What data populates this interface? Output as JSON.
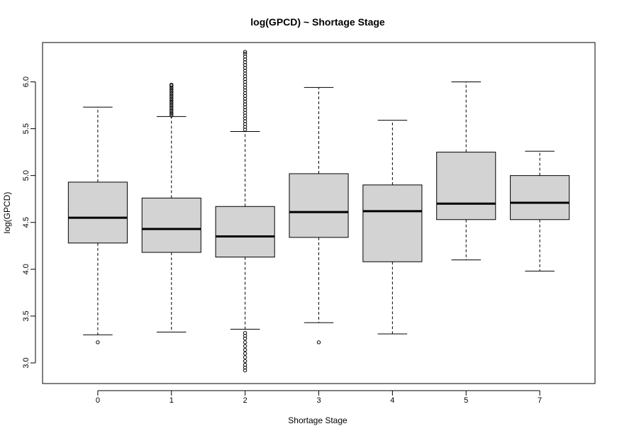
{
  "chart_data": {
    "type": "boxplot",
    "title": "log(GPCD) ~ Shortage Stage",
    "xlabel": "Shortage Stage",
    "ylabel": "log(GPCD)",
    "ylim": [
      2.78,
      6.42
    ],
    "yticks": [
      "3.0",
      "3.5",
      "4.0",
      "4.5",
      "5.0",
      "5.5",
      "6.0"
    ],
    "categories": [
      "0",
      "1",
      "2",
      "3",
      "4",
      "5",
      "7"
    ],
    "colors": {
      "box_fill": "#d3d3d3",
      "stroke": "#000000"
    },
    "boxes": [
      {
        "label": "0",
        "whisker_low": 3.3,
        "q1": 4.28,
        "median": 4.55,
        "q3": 4.93,
        "whisker_high": 5.73,
        "outliers": [
          3.22
        ]
      },
      {
        "label": "1",
        "whisker_low": 3.33,
        "q1": 4.18,
        "median": 4.43,
        "q3": 4.76,
        "whisker_high": 5.63,
        "outliers": [
          5.64,
          5.66,
          5.68,
          5.7,
          5.72,
          5.74,
          5.76,
          5.78,
          5.8,
          5.82,
          5.84,
          5.86,
          5.88,
          5.9,
          5.92,
          5.94,
          5.96,
          5.97
        ]
      },
      {
        "label": "2",
        "whisker_low": 3.36,
        "q1": 4.13,
        "median": 4.35,
        "q3": 4.67,
        "whisker_high": 5.47,
        "outliers": [
          5.49,
          5.52,
          5.55,
          5.58,
          5.61,
          5.64,
          5.67,
          5.7,
          5.73,
          5.76,
          5.79,
          5.82,
          5.85,
          5.88,
          5.91,
          5.94,
          5.97,
          6.0,
          6.03,
          6.06,
          6.09,
          6.12,
          6.15,
          6.18,
          6.21,
          6.24,
          6.27,
          6.3,
          6.32,
          3.32,
          3.29,
          3.26,
          3.22,
          3.18,
          3.14,
          3.1,
          3.06,
          3.02,
          2.98,
          2.95,
          2.92
        ]
      },
      {
        "label": "3",
        "whisker_low": 3.43,
        "q1": 4.34,
        "median": 4.61,
        "q3": 5.02,
        "whisker_high": 5.94,
        "outliers": [
          3.22
        ]
      },
      {
        "label": "4",
        "whisker_low": 3.31,
        "q1": 4.08,
        "median": 4.62,
        "q3": 4.9,
        "whisker_high": 5.59,
        "outliers": []
      },
      {
        "label": "5",
        "whisker_low": 4.1,
        "q1": 4.53,
        "median": 4.7,
        "q3": 5.25,
        "whisker_high": 6.0,
        "outliers": []
      },
      {
        "label": "7",
        "whisker_low": 3.98,
        "q1": 4.53,
        "median": 4.71,
        "q3": 5.0,
        "whisker_high": 5.26,
        "outliers": []
      }
    ]
  }
}
